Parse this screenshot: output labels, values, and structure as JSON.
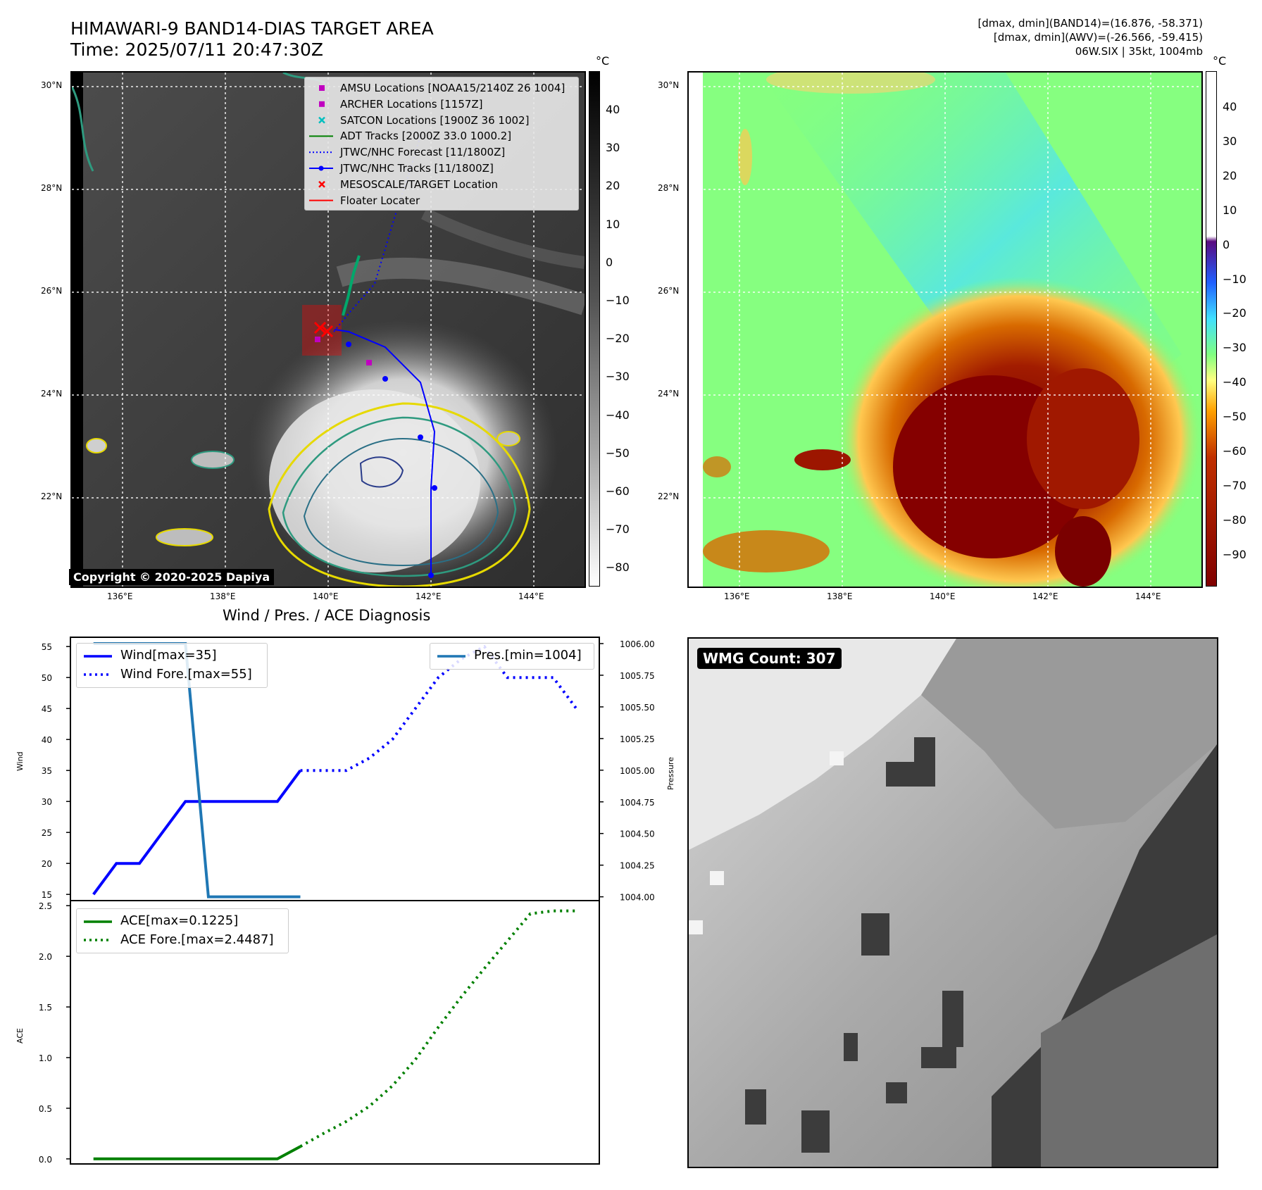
{
  "header": {
    "title_line1": "HIMAWARI-9 BAND14-DIAS TARGET AREA",
    "title_line2": "Time: 2025/07/11 20:47:30Z",
    "info_line1": "[dmax, dmin](BAND14)=(16.876, -58.371)",
    "info_line2": "[dmax, dmin](AWV)=(-26.566, -59.415)",
    "info_line3": "06W.SIX | 35kt, 1004mb"
  },
  "map": {
    "lat_labels": [
      "30°N",
      "28°N",
      "26°N",
      "24°N",
      "22°N"
    ],
    "lon_labels": [
      "136°E",
      "138°E",
      "140°E",
      "142°E",
      "144°E"
    ],
    "copyright": "Copyright © 2020-2025 Dapiya",
    "legend": [
      {
        "label": "AMSU Locations [NOAA15/2140Z 26 1004]",
        "color": "#c000c0",
        "kind": "square"
      },
      {
        "label": "ARCHER Locations [1157Z]",
        "color": "#c000c0",
        "kind": "square"
      },
      {
        "label": "SATCON Locations [1900Z 36 1002]",
        "color": "#00bfbf",
        "kind": "x"
      },
      {
        "label": "ADT Tracks [2000Z 33.0 1000.2]",
        "color": "#008000",
        "kind": "line"
      },
      {
        "label": "JTWC/NHC Forecast [11/1800Z]",
        "color": "#0000ff",
        "kind": "dotted"
      },
      {
        "label": "JTWC/NHC Tracks [11/1800Z]",
        "color": "#0000ff",
        "kind": "line-dot"
      },
      {
        "label": "MESOSCALE/TARGET Location",
        "color": "#ff0000",
        "kind": "x"
      },
      {
        "label": "Floater Locater",
        "color": "#ff0000",
        "kind": "line"
      }
    ]
  },
  "colorbar_left": {
    "unit": "°C",
    "ticks": [
      "40",
      "30",
      "20",
      "10",
      "0",
      "−10",
      "−20",
      "−30",
      "−40",
      "−50",
      "−60",
      "−70",
      "−80"
    ]
  },
  "colorbar_right": {
    "unit": "°C",
    "ticks": [
      "40",
      "30",
      "20",
      "10",
      "0",
      "−10",
      "−20",
      "−30",
      "−40",
      "−50",
      "−60",
      "−70",
      "−80",
      "−90"
    ]
  },
  "diagnosis": {
    "title": "Wind / Pres. / ACE Diagnosis",
    "wind_ylabel": "Wind",
    "pres_ylabel": "Pressure",
    "ace_ylabel": "ACE",
    "wind_ticks": [
      "55",
      "50",
      "45",
      "40",
      "35",
      "30",
      "25",
      "20",
      "15"
    ],
    "pres_ticks": [
      "1006.00",
      "1005.75",
      "1005.50",
      "1005.25",
      "1005.00",
      "1004.75",
      "1004.50",
      "1004.25",
      "1004.00"
    ],
    "ace_ticks": [
      "2.5",
      "2.0",
      "1.5",
      "1.0",
      "0.5",
      "0.0"
    ],
    "legend_wind": "Wind[max=35]",
    "legend_wind_fore": "Wind Fore.[max=55]",
    "legend_pres": "Pres.[min=1004]",
    "legend_ace": "ACE[max=0.1225]",
    "legend_ace_fore": "ACE Fore.[max=2.4487]"
  },
  "wmg": {
    "label": "WMG Count: 307"
  },
  "chart_data": [
    {
      "type": "line",
      "panel": "wind",
      "ylabel": "Wind",
      "ylim": [
        14,
        56.5
      ],
      "x": [
        0,
        1,
        2,
        3,
        4,
        5,
        6,
        7,
        8,
        9,
        10,
        11,
        12,
        13,
        14,
        15,
        16,
        17,
        18,
        19,
        20,
        21
      ],
      "series": [
        {
          "name": "Wind[max=35]",
          "color": "#0000ff",
          "style": "solid",
          "points": [
            [
              0,
              15
            ],
            [
              1,
              20
            ],
            [
              2,
              20
            ],
            [
              3,
              25
            ],
            [
              4,
              30
            ],
            [
              5,
              30
            ],
            [
              6,
              30
            ],
            [
              7,
              30
            ],
            [
              8,
              30
            ],
            [
              9,
              35
            ]
          ]
        },
        {
          "name": "Wind Fore.[max=55]",
          "color": "#0000ff",
          "style": "dotted",
          "points": [
            [
              9,
              35
            ],
            [
              10,
              35
            ],
            [
              11,
              35
            ],
            [
              12,
              37
            ],
            [
              13,
              40
            ],
            [
              14,
              45
            ],
            [
              15,
              50
            ],
            [
              16,
              53
            ],
            [
              17,
              55
            ],
            [
              18,
              50
            ],
            [
              19,
              50
            ],
            [
              20,
              50
            ],
            [
              21,
              45
            ]
          ]
        }
      ]
    },
    {
      "type": "line",
      "panel": "pressure",
      "ylabel": "Pressure",
      "ylim": [
        1003.97,
        1006.05
      ],
      "series": [
        {
          "name": "Pres.[min=1004]",
          "color": "#1f77b4",
          "style": "solid",
          "points": [
            [
              0,
              1006
            ],
            [
              4,
              1006
            ],
            [
              5,
              1004
            ],
            [
              9,
              1004
            ]
          ]
        }
      ]
    },
    {
      "type": "line",
      "panel": "ace",
      "ylabel": "ACE",
      "ylim": [
        -0.05,
        2.55
      ],
      "series": [
        {
          "name": "ACE[max=0.1225]",
          "color": "#008000",
          "style": "solid",
          "points": [
            [
              0,
              0
            ],
            [
              8,
              0
            ],
            [
              9,
              0.1225
            ]
          ]
        },
        {
          "name": "ACE Fore.[max=2.4487]",
          "color": "#008000",
          "style": "dotted",
          "points": [
            [
              9,
              0.1225
            ],
            [
              10,
              0.25
            ],
            [
              11,
              0.37
            ],
            [
              12,
              0.52
            ],
            [
              13,
              0.72
            ],
            [
              14,
              0.98
            ],
            [
              15,
              1.3
            ],
            [
              16,
              1.6
            ],
            [
              17,
              1.88
            ],
            [
              18,
              2.15
            ],
            [
              19,
              2.42
            ],
            [
              20,
              2.4487
            ],
            [
              21,
              2.4487
            ]
          ]
        }
      ]
    }
  ]
}
